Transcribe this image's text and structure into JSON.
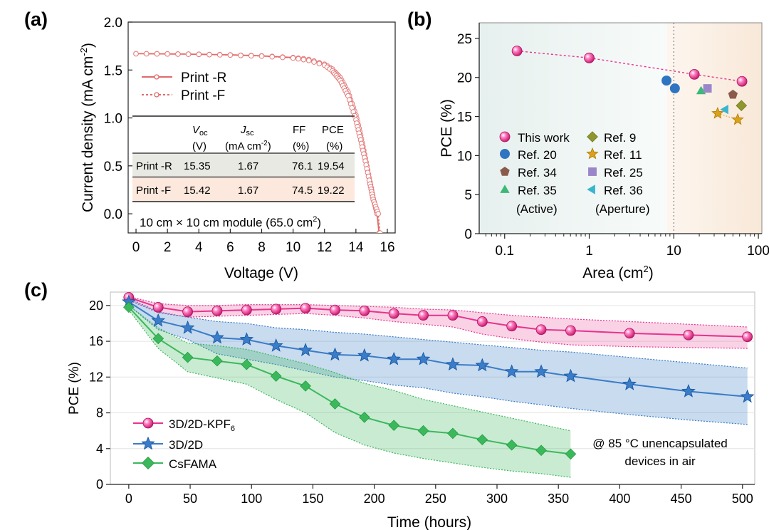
{
  "figure_title": "",
  "panel_labels": {
    "a": "(a)",
    "b": "(b)",
    "c": "(c)"
  },
  "colors": {
    "pink": "#e8338e",
    "blue": "#3a7cc7",
    "green": "#3cb85c",
    "red_line": "#e26a6a",
    "brown": "#8a5a4a",
    "olive": "#8f962f",
    "gold": "#d9a21a",
    "lavender": "#9b86c9",
    "cyan": "#39b5d0"
  },
  "chart_data": [
    {
      "id": "a",
      "type": "line",
      "title": "",
      "xlabel": "Voltage (V)",
      "ylabel": "Current density (mA cm",
      "ylabel_sup": "-2",
      "ylabel_tail": ")",
      "xlim": [
        -0.5,
        16.5
      ],
      "ylim": [
        -0.2,
        2.0
      ],
      "xticks": [
        0,
        2,
        4,
        6,
        8,
        10,
        12,
        14,
        16
      ],
      "yticks": [
        0.0,
        0.5,
        1.0,
        1.5,
        2.0
      ],
      "ytick_labels": [
        "0.0",
        "0.5",
        "1.0",
        "1.5",
        "2.0"
      ],
      "series": [
        {
          "name": "Print -R",
          "style": "solid",
          "x": [
            0,
            2,
            4,
            6,
            8,
            10,
            11,
            12,
            12.5,
            13,
            13.5,
            14,
            14.3,
            14.6,
            14.9,
            15.1,
            15.35
          ],
          "y": [
            1.67,
            1.668,
            1.664,
            1.658,
            1.648,
            1.63,
            1.61,
            1.56,
            1.51,
            1.42,
            1.27,
            1.03,
            0.82,
            0.58,
            0.33,
            0.16,
            0.0
          ]
        },
        {
          "name": "Print -F",
          "style": "dotted",
          "x": [
            0,
            2,
            4,
            6,
            8,
            10,
            11,
            12,
            12.5,
            13,
            13.5,
            14,
            14.3,
            14.6,
            14.9,
            15.1,
            15.42
          ],
          "y": [
            1.67,
            1.668,
            1.663,
            1.656,
            1.645,
            1.625,
            1.6,
            1.55,
            1.49,
            1.39,
            1.23,
            0.98,
            0.77,
            0.55,
            0.31,
            0.15,
            0.0
          ]
        }
      ],
      "legend": [
        "Print -R",
        "Print -F"
      ],
      "table": {
        "headers": [
          {
            "main": "V",
            "sub": "oc",
            "unit": "(V)",
            "italic": true
          },
          {
            "main": "J",
            "sub": "sc",
            "unit": "(mA cm",
            "unit_sup": "-2",
            "unit_tail": ")",
            "italic": true
          },
          {
            "main": "FF",
            "sub": "",
            "unit": "(%)",
            "italic": false
          },
          {
            "main": "PCE",
            "sub": "",
            "unit": "(%)",
            "italic": false
          }
        ],
        "rows": [
          {
            "label": "Print -R",
            "values": [
              "15.35",
              "1.67",
              "76.1",
              "19.54"
            ]
          },
          {
            "label": "Print -F",
            "values": [
              "15.42",
              "1.67",
              "74.5",
              "19.22"
            ]
          }
        ]
      },
      "annotation": "10 cm × 10 cm module (65.0 cm",
      "annotation_sup": "2",
      "annotation_tail": ")"
    },
    {
      "id": "b",
      "type": "scatter",
      "title": "",
      "xlabel": "Area (cm",
      "xlabel_sup": "2",
      "xlabel_tail": ")",
      "ylabel": "PCE (%)",
      "xscale": "log",
      "xlim": [
        0.05,
        110
      ],
      "ylim": [
        0,
        27
      ],
      "xticks": [
        0.1,
        1,
        10,
        100
      ],
      "xtick_labels": [
        "0.1",
        "1",
        "10",
        "100"
      ],
      "yticks": [
        0,
        5,
        10,
        15,
        20,
        25
      ],
      "divider_x": 10,
      "series": [
        {
          "name": "This work",
          "marker": "sphere",
          "color": "#e8338e",
          "x": [
            0.14,
            1.0,
            17.5,
            64
          ],
          "y": [
            23.4,
            22.5,
            20.4,
            19.5
          ]
        },
        {
          "name": "Ref. 20",
          "marker": "circle",
          "color": "#2f74c0",
          "x": [
            8.2,
            10.3
          ],
          "y": [
            19.6,
            18.6
          ]
        },
        {
          "name": "Ref. 34",
          "marker": "pentagon",
          "color": "#8a5a4a",
          "x": [
            50
          ],
          "y": [
            17.8
          ]
        },
        {
          "name": "Ref. 35",
          "marker": "triangle-up",
          "color": "#3cb878",
          "x": [
            21
          ],
          "y": [
            18.3
          ]
        },
        {
          "name": "Ref. 9",
          "marker": "diamond",
          "color": "#8f962f",
          "x": [
            63
          ],
          "y": [
            16.4
          ]
        },
        {
          "name": "Ref. 11",
          "marker": "star",
          "color": "#d9a21a",
          "x": [
            33,
            57
          ],
          "y": [
            15.4,
            14.6
          ]
        },
        {
          "name": "Ref. 25",
          "marker": "square",
          "color": "#9b86c9",
          "x": [
            25
          ],
          "y": [
            18.6
          ]
        },
        {
          "name": "Ref. 36",
          "marker": "triangle-left",
          "color": "#39b5d0",
          "x": [
            41
          ],
          "y": [
            15.9
          ]
        }
      ],
      "legend": [
        "This work",
        "Ref. 9",
        "Ref. 20",
        "Ref. 11",
        "Ref. 34",
        "Ref. 25",
        "Ref. 35",
        "Ref. 36"
      ],
      "legend_notes": [
        "(Active)",
        "(Aperture)"
      ]
    },
    {
      "id": "c",
      "type": "line",
      "title": "",
      "xlabel": "Time (hours)",
      "ylabel": "PCE (%)",
      "xlim": [
        -15,
        510
      ],
      "ylim": [
        0,
        21.5
      ],
      "xticks": [
        0,
        50,
        100,
        150,
        200,
        250,
        300,
        350,
        400,
        450,
        500
      ],
      "yticks": [
        0,
        4,
        8,
        12,
        16,
        20
      ],
      "series": [
        {
          "name": "3D/2D-KPF",
          "name_sub": "6",
          "marker": "sphere",
          "color": "#e8338e",
          "x": [
            0,
            24,
            48,
            72,
            96,
            120,
            144,
            168,
            192,
            216,
            240,
            264,
            288,
            312,
            336,
            360,
            408,
            456,
            504
          ],
          "y": [
            20.9,
            19.8,
            19.3,
            19.4,
            19.5,
            19.6,
            19.7,
            19.5,
            19.4,
            19.1,
            18.9,
            18.9,
            18.2,
            17.7,
            17.3,
            17.2,
            16.9,
            16.7,
            16.5
          ],
          "upper": [
            21.0,
            20.2,
            20.0,
            20.0,
            20.1,
            20.1,
            20.1,
            20.0,
            19.9,
            19.8,
            19.6,
            19.5,
            19.2,
            18.9,
            18.7,
            18.5,
            18.2,
            17.9,
            17.6
          ],
          "lower": [
            20.6,
            19.2,
            18.7,
            18.8,
            18.9,
            19.0,
            19.1,
            18.9,
            18.6,
            18.2,
            17.9,
            17.6,
            16.8,
            16.3,
            15.9,
            15.6,
            15.4,
            15.3,
            15.2
          ]
        },
        {
          "name": "3D/2D",
          "name_sub": "",
          "marker": "star",
          "color": "#3a7cc7",
          "x": [
            0,
            24,
            48,
            72,
            96,
            120,
            144,
            168,
            192,
            216,
            240,
            264,
            288,
            312,
            336,
            360,
            408,
            456,
            504
          ],
          "y": [
            20.4,
            18.3,
            17.5,
            16.4,
            16.2,
            15.5,
            15.0,
            14.5,
            14.4,
            14.0,
            14.0,
            13.4,
            13.3,
            12.6,
            12.6,
            12.1,
            11.2,
            10.4,
            9.8
          ],
          "upper": [
            20.8,
            19.3,
            18.7,
            18.2,
            18.0,
            17.5,
            17.3,
            17.0,
            16.8,
            16.5,
            16.2,
            15.9,
            15.6,
            15.3,
            15.0,
            14.8,
            14.2,
            13.6,
            13.0
          ],
          "lower": [
            20.0,
            17.3,
            16.2,
            14.6,
            14.0,
            13.4,
            12.7,
            12.0,
            11.6,
            11.1,
            10.8,
            10.2,
            9.8,
            9.3,
            8.9,
            8.5,
            7.8,
            7.2,
            6.7
          ]
        },
        {
          "name": "CsFAMA",
          "name_sub": "",
          "marker": "diamond",
          "color": "#3cb85c",
          "x": [
            0,
            24,
            48,
            72,
            96,
            120,
            144,
            168,
            192,
            216,
            240,
            264,
            288,
            312,
            336,
            360
          ],
          "y": [
            19.8,
            16.3,
            14.2,
            13.8,
            13.4,
            12.1,
            11.0,
            9.0,
            7.5,
            6.6,
            6.0,
            5.7,
            5.0,
            4.4,
            3.8,
            3.4
          ],
          "upper": [
            20.0,
            17.5,
            15.8,
            15.5,
            15.1,
            14.3,
            13.5,
            12.5,
            11.3,
            10.5,
            9.5,
            8.8,
            8.1,
            7.4,
            6.7,
            6.0
          ],
          "lower": [
            19.5,
            15.2,
            12.6,
            11.9,
            11.2,
            9.5,
            8.0,
            5.8,
            4.4,
            3.5,
            2.9,
            2.4,
            1.9,
            1.5,
            1.2,
            0.8
          ]
        }
      ],
      "legend": [
        "3D/2D-KPF6",
        "3D/2D",
        "CsFAMA"
      ],
      "annotation_line1": "@ 85 °C unencapsulated",
      "annotation_line2": "devices in air"
    }
  ]
}
